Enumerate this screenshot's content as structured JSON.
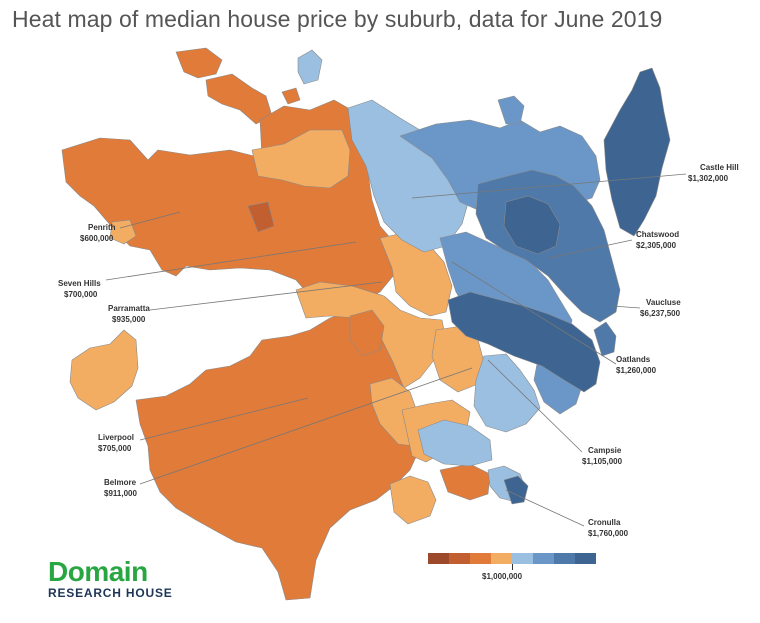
{
  "title": "Heat map of median house price by suburb, data for June 2019",
  "colors": {
    "dark_red": "#9c4a2b",
    "orange": "#e07b3a",
    "light_orange": "#f2ad62",
    "light_blue": "#9bbfe0",
    "mid_blue": "#6b97c8",
    "dark_blue": "#3e6592",
    "border": "#8a8a8a"
  },
  "legend": {
    "colors": [
      "#9c4a2b",
      "#c25f30",
      "#e07b3a",
      "#f2ad62",
      "#9bbfe0",
      "#6b97c8",
      "#4f79a8",
      "#3e6592"
    ],
    "midpoint_label": "$1,000,000"
  },
  "callouts": [
    {
      "name": "Castle Hill",
      "value": "$1,302,000"
    },
    {
      "name": "Chatswood",
      "value": "$2,305,000"
    },
    {
      "name": "Vaucluse",
      "value": "$6,237,500"
    },
    {
      "name": "Oatlands",
      "value": "$1,260,000"
    },
    {
      "name": "Campsie",
      "value": "$1,105,000"
    },
    {
      "name": "Cronulla",
      "value": "$1,760,000"
    },
    {
      "name": "Penrith",
      "value": "$600,000"
    },
    {
      "name": "Seven Hills",
      "value": "$700,000"
    },
    {
      "name": "Parramatta",
      "value": "$935,000"
    },
    {
      "name": "Liverpool",
      "value": "$705,000"
    },
    {
      "name": "Belmore",
      "value": "$911,000"
    }
  ],
  "logo": {
    "main": "Domain",
    "sub": "RESEARCH HOUSE"
  }
}
